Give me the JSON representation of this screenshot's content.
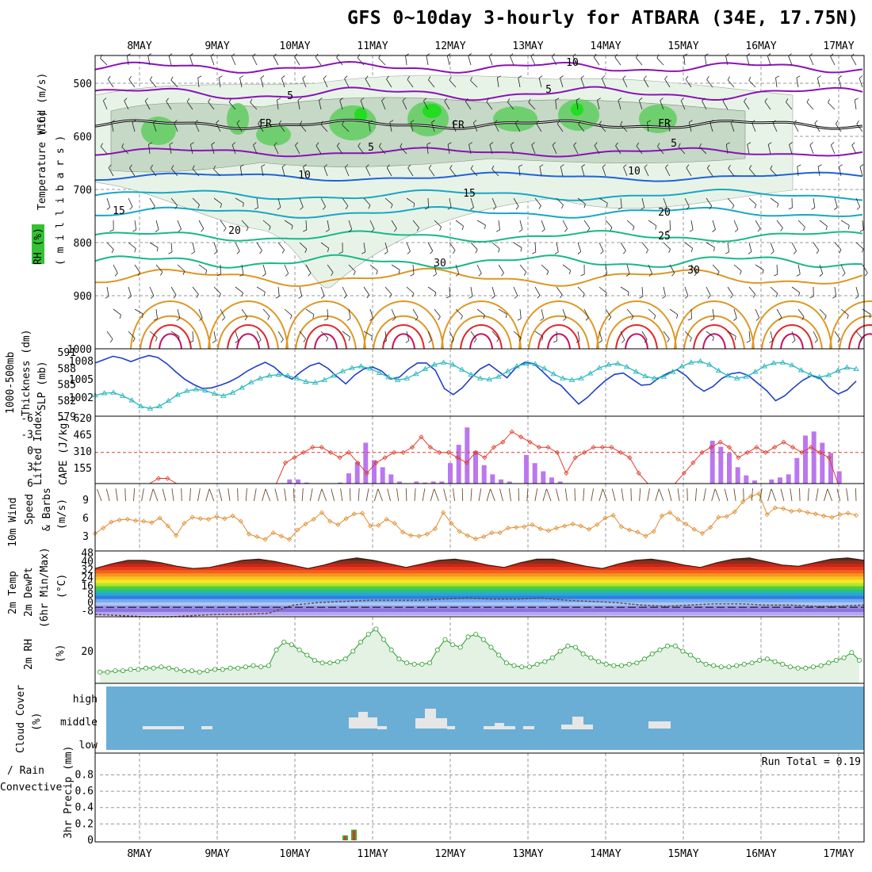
{
  "title": "GFS 0~10day 3-hourly for ATBARA (34E, 17.75N)",
  "colors": {
    "grid": "#999999",
    "rh_light": "#e8f3e8",
    "rh_mid": "#bfd2bf",
    "rh_dark": "#6fcf6f",
    "rh_bright": "#22dd22",
    "purple": "#8a12b8",
    "blue": "#1f63d6",
    "teal": "#18a7c4",
    "green": "#17b88a",
    "orange": "#dd9722",
    "red": "#e02a2a",
    "slp": "#1f3fc8",
    "thick": "#2bb8c0",
    "li": "#e03a2a",
    "cape": "#bb77ee",
    "wind": "#e08b2a",
    "barb": "#6b4b2b",
    "rh2m": "#2a9a2a",
    "rh2m_fill": "#e4f2e4",
    "cloud_bg": "#6aaed6",
    "cloud": "#e6e6e6",
    "precip_total": "#2fb52f",
    "precip_conv": "#e23030"
  },
  "labels": {
    "x_dates": [
      "8MAY",
      "9MAY",
      "10MAY",
      "11MAY",
      "12MAY",
      "13MAY",
      "14MAY",
      "15MAY",
      "16MAY",
      "17MAY"
    ],
    "p1": {
      "wind": "Wind (m/s)",
      "temp": "Temperature (°C)",
      "rh": "RH (%)",
      "units": "( m i l l i b a r s )",
      "ticks": [
        "500",
        "600",
        "700",
        "800",
        "900",
        "1000"
      ],
      "contours": [
        {
          "text": "10",
          "x": 722,
          "y": 83,
          "c": "purple"
        },
        {
          "text": "5",
          "x": 366,
          "y": 125,
          "c": "purple"
        },
        {
          "text": "5",
          "x": 692,
          "y": 117,
          "c": "purple"
        },
        {
          "text": "5",
          "x": 468,
          "y": 190,
          "c": "purple"
        },
        {
          "text": "5",
          "x": 850,
          "y": 185,
          "c": "purple"
        },
        {
          "text": "10",
          "x": 384,
          "y": 225,
          "c": "blue"
        },
        {
          "text": "10",
          "x": 800,
          "y": 220,
          "c": "blue"
        },
        {
          "text": "15",
          "x": 592,
          "y": 248,
          "c": "teal"
        },
        {
          "text": "15",
          "x": 150,
          "y": 270,
          "c": "teal"
        },
        {
          "text": "20",
          "x": 838,
          "y": 272,
          "c": "green"
        },
        {
          "text": "20",
          "x": 296,
          "y": 295,
          "c": "green"
        },
        {
          "text": "25",
          "x": 838,
          "y": 302,
          "c": "green"
        },
        {
          "text": "30",
          "x": 555,
          "y": 336,
          "c": "orange"
        },
        {
          "text": "30",
          "x": 875,
          "y": 345,
          "c": "orange"
        },
        {
          "text": "FR",
          "x": 335,
          "y": 160,
          "c": "black"
        },
        {
          "text": "FR",
          "x": 578,
          "y": 162,
          "c": "black"
        },
        {
          "text": "FR",
          "x": 838,
          "y": 160,
          "c": "black"
        }
      ]
    },
    "p2": {
      "thick": "Thickness (dm)",
      "thick_sup": "1000-500mb",
      "slp": "SLP (mb)",
      "left_ticks": [
        "591",
        "588",
        "585",
        "582",
        "579"
      ],
      "right_ticks": [
        "1008",
        "1005",
        "1002"
      ]
    },
    "p3": {
      "li": "Lifted Index",
      "cape": "CAPE (J/kg)",
      "left_ticks": [
        "-6",
        "-3",
        "0",
        "3",
        "6"
      ],
      "right_ticks": [
        "620",
        "465",
        "310",
        "155"
      ]
    },
    "p4": {
      "line1": "10m Wind",
      "line2": "Speed",
      "line3": "& Barbs",
      "units": "(m/s)",
      "ticks": [
        "9",
        "6",
        "3"
      ]
    },
    "p5": {
      "line1": "2m Temp",
      "line2": "2m DewPt",
      "line3": "(6hr Min/Max)",
      "units": "(°C)",
      "ticks": [
        "48",
        "40",
        "32",
        "24",
        "16",
        "8",
        "0",
        "-8"
      ]
    },
    "p6": {
      "line1": "2m RH",
      "units": "(%)",
      "ticks": [
        "20"
      ]
    },
    "p7": {
      "line1": "Cloud Cover",
      "units": "(%)",
      "ticks": [
        "high",
        "middle",
        "low"
      ]
    },
    "p8": {
      "line1": "Total / Rain",
      "line2": "Convective",
      "units": "3hr Precip (mm)",
      "ticks": [
        "0.8",
        "0.6",
        "0.4",
        "0.2",
        "0"
      ],
      "run_total": "Run Total = 0.19"
    }
  },
  "chart_data": {
    "type": "meteogram",
    "x_dates": [
      "8MAY",
      "9MAY",
      "10MAY",
      "11MAY",
      "12MAY",
      "13MAY",
      "14MAY",
      "15MAY",
      "16MAY",
      "17MAY"
    ],
    "start": "2024-05-07 12Z",
    "step_hours": 3,
    "slp_mb": [
      1002.6,
      1002.8,
      1002.9,
      1002.7,
      1002.1,
      1001.2,
      1000.6,
      1000.3,
      1000.6,
      1001.0,
      1001.6,
      1002.4,
      1003.3,
      1003.9,
      1004.3,
      1004.2,
      1003.8,
      1003.5,
      1003.3,
      1003.1,
      1003.3,
      1003.8,
      1004.2,
      1004.6,
      1005.0,
      1005.7,
      1006.1,
      1006.3,
      1006.0,
      1005.5,
      1005.3,
      1005.1,
      1005.1,
      1005.5,
      1005.9,
      1006.5,
      1006.9,
      1006.7,
      1006.3,
      1005.9,
      1005.5,
      1005.2,
      1005.3,
      1005.9,
      1006.7,
      1007.4,
      1008.0,
      1008.2,
      1007.9,
      1007.3,
      1006.8,
      1006.1,
      1005.6,
      1005.4,
      1005.5,
      1005.9,
      1006.5,
      1007.1,
      1007.5,
      1007.5,
      1007.2,
      1006.7,
      1006.1,
      1005.6,
      1005.2,
      1005.0,
      1005.3,
      1006.0,
      1006.6,
      1007.3,
      1007.8,
      1007.9,
      1007.5,
      1006.9,
      1006.3,
      1005.8,
      1005.4,
      1005.6,
      1006.0,
      1006.6,
      1007.2,
      1007.6,
      1007.7,
      1007.4
    ],
    "slp_series_b": [
      1007.9,
      1008.4,
      1008.9,
      1008.6,
      1008.1,
      1008.6,
      1009.0,
      1008.7,
      1007.8,
      1006.6,
      1005.5,
      1004.7,
      1004.1,
      1004.2,
      1004.6,
      1005.1,
      1005.8,
      1006.7,
      1007.4,
      1008.0,
      1007.3,
      1006.1,
      1005.5,
      1006.6,
      1007.5,
      1007.9,
      1007.1,
      1005.9,
      1004.8,
      1006.1,
      1007.0,
      1007.3,
      1006.7,
      1005.5,
      1005.8,
      1007.0,
      1007.9,
      1007.9,
      1006.8,
      1004.1,
      1003.2,
      1004.2,
      1005.7,
      1007.0,
      1007.7,
      1006.7,
      1005.7,
      1007.2,
      1008.0,
      1007.8,
      1006.6,
      1005.3,
      1004.6,
      1003.2,
      1001.8,
      1002.8,
      1004.1,
      1005.3,
      1006.2,
      1006.4,
      1005.5,
      1004.6,
      1004.7,
      1005.7,
      1006.4,
      1006.9,
      1006.0,
      1004.6,
      1003.7,
      1004.4,
      1005.6,
      1006.3,
      1006.5,
      1006.0,
      1004.9,
      1003.8,
      1002.3,
      1003.0,
      1004.2,
      1005.3,
      1006.0,
      1005.6,
      1004.2,
      1003.3,
      1003.9,
      1005.2
    ],
    "thickness_dm": [
      582.5,
      582.9,
      583.0,
      582.4,
      581.6,
      580.5,
      580.1,
      580.5,
      581.5,
      582.6,
      583.3,
      583.6,
      583.4,
      582.8,
      582.4,
      583.0,
      583.9,
      584.9,
      585.6,
      586.1,
      586.3,
      586.1,
      585.6,
      585.0,
      584.8,
      585.3,
      586.1,
      586.9,
      587.5,
      587.8,
      587.4,
      586.6,
      585.8,
      585.3,
      585.6,
      586.4,
      587.3,
      588.1,
      588.5,
      588.1,
      587.2,
      586.3,
      585.6,
      585.4,
      585.9,
      586.9,
      587.8,
      588.3,
      588.2,
      587.4,
      586.4,
      585.6,
      585.3,
      585.6,
      586.5,
      587.5,
      588.1,
      588.3,
      587.7,
      586.8,
      586.0,
      585.6,
      585.9,
      586.8,
      587.8,
      588.5,
      588.7,
      588.1,
      587.0,
      586.1,
      585.6,
      585.9,
      586.8,
      587.8,
      588.4,
      588.5,
      588.0,
      587.1,
      586.3,
      585.8,
      586.2,
      587.0,
      587.6,
      587.3
    ],
    "lifted_index": [
      6,
      6,
      6,
      6,
      6,
      6,
      6,
      5,
      5,
      6,
      6,
      6,
      6,
      6,
      6,
      6,
      6,
      6,
      6,
      6,
      6,
      2,
      1,
      0,
      -1,
      -1,
      0,
      1,
      0,
      2,
      4,
      2,
      1,
      0,
      0,
      -1,
      -3,
      -1,
      0,
      0,
      1,
      2,
      0,
      1,
      -1,
      -2,
      -4,
      -3,
      -2,
      -1,
      -1,
      0,
      4,
      1,
      0,
      -1,
      -1,
      -1,
      0,
      1,
      4,
      6,
      6,
      6,
      6,
      4,
      2,
      0,
      -1,
      -2,
      -1,
      1,
      0,
      -1,
      0,
      -1,
      -2,
      -1,
      0,
      -1,
      0,
      1,
      6,
      6,
      6
    ],
    "cape_jkg": [
      0,
      0,
      0,
      0,
      0,
      0,
      0,
      0,
      0,
      0,
      0,
      0,
      0,
      0,
      0,
      0,
      0,
      0,
      0,
      0,
      0,
      0,
      0,
      40,
      40,
      10,
      0,
      0,
      0,
      10,
      100,
      210,
      400,
      230,
      160,
      90,
      20,
      0,
      20,
      10,
      20,
      20,
      200,
      380,
      550,
      320,
      180,
      90,
      40,
      20,
      0,
      280,
      200,
      120,
      60,
      20,
      0,
      0,
      0,
      0,
      0,
      0,
      0,
      0,
      0,
      0,
      0,
      0,
      0,
      0,
      0,
      0,
      0,
      420,
      360,
      300,
      160,
      80,
      30,
      0,
      40,
      60,
      90,
      250,
      470,
      510,
      400,
      300,
      120,
      0,
      0
    ],
    "wind_speed_ms": [
      3.1,
      3.9,
      4.8,
      5.1,
      5.2,
      5.0,
      4.9,
      4.7,
      5.4,
      4.2,
      2.8,
      4.6,
      5.5,
      5.3,
      5.2,
      5.6,
      5.3,
      5.7,
      4.9,
      3.0,
      2.6,
      2.2,
      3.2,
      2.7,
      2.2,
      3.6,
      4.5,
      5.2,
      6.2,
      4.9,
      4.4,
      5.3,
      6.0,
      6.1,
      4.2,
      4.3,
      5.2,
      4.6,
      3.3,
      2.8,
      2.7,
      3.0,
      3.8,
      6.2,
      4.6,
      3.4,
      2.8,
      2.3,
      2.6,
      3.2,
      3.2,
      3.9,
      4.0,
      4.1,
      4.4,
      3.8,
      3.5,
      3.9,
      4.2,
      4.5,
      4.2,
      3.7,
      4.4,
      5.4,
      5.8,
      4.1,
      3.6,
      3.3,
      2.7,
      3.4,
      5.7,
      6.2,
      5.2,
      4.5,
      3.7,
      3.1,
      4.0,
      5.5,
      5.6,
      6.3,
      7.8,
      8.6,
      9.0,
      5.9,
      6.9,
      6.8,
      6.4,
      6.5,
      6.2,
      6.0,
      5.7,
      5.5,
      5.9,
      6.1,
      5.8
    ],
    "temp_max_c": [
      33,
      37,
      40,
      40,
      38,
      35,
      33,
      34,
      37,
      40,
      41,
      39,
      36,
      33,
      36,
      40,
      42,
      40,
      37,
      34,
      37,
      40,
      41,
      39,
      36,
      34,
      38,
      41,
      41,
      38,
      35,
      33,
      37,
      40,
      41,
      39,
      36,
      34,
      38,
      41,
      42,
      39,
      36,
      35,
      38,
      41,
      42,
      40
    ],
    "dewpoint_c": [
      -6,
      -7,
      -8,
      -8,
      -7,
      -6,
      -6,
      -5,
      2,
      4,
      5,
      6,
      6,
      6,
      7,
      8,
      7,
      7,
      8,
      6,
      5,
      4,
      2,
      1,
      2,
      3,
      3,
      2,
      2,
      1,
      1,
      2
    ],
    "rh_2m_pct": [
      5,
      5,
      6,
      6,
      7,
      7,
      8,
      8,
      9,
      8,
      7,
      6,
      6,
      5,
      6,
      7,
      7,
      8,
      8,
      9,
      10,
      9,
      10,
      22,
      28,
      26,
      22,
      18,
      14,
      12,
      12,
      13,
      15,
      21,
      28,
      34,
      38,
      30,
      22,
      15,
      12,
      11,
      11,
      12,
      22,
      30,
      26,
      24,
      32,
      34,
      30,
      24,
      18,
      12,
      10,
      9,
      9,
      11,
      13,
      16,
      21,
      25,
      24,
      19,
      16,
      13,
      11,
      10,
      10,
      11,
      12,
      15,
      19,
      22,
      25,
      25,
      21,
      18,
      14,
      11,
      10,
      9,
      9,
      10,
      11,
      12,
      14,
      15,
      13,
      11,
      9,
      8,
      8,
      9,
      10,
      12,
      14,
      16,
      20,
      14
    ],
    "cloud_middle": [
      {
        "from": "8MAY",
        "span_hours": 15,
        "level": "middle"
      },
      {
        "from": "9MAY",
        "span_hours": 3,
        "level": "middle"
      },
      {
        "from": "10MAY",
        "span_hours": 15,
        "level": "middle"
      },
      {
        "from": "11MAY",
        "span_hours": 15,
        "level": "middle"
      },
      {
        "from": "12MAY",
        "span_hours": 9,
        "level": "middle"
      },
      {
        "from": "13MAY",
        "span_hours": 9,
        "level": "middle"
      },
      {
        "from": "14MAY",
        "span_hours": 9,
        "level": "middle"
      }
    ],
    "precip_mm": [
      {
        "time": "10MAY 15Z",
        "total": 0.06,
        "convective": 0.05
      },
      {
        "time": "10MAY 18Z",
        "total": 0.13,
        "convective": 0.12
      }
    ],
    "run_total_mm": 0.19,
    "pressure_axis_mb": [
      500,
      600,
      700,
      800,
      900,
      1000
    ],
    "grid": true
  }
}
